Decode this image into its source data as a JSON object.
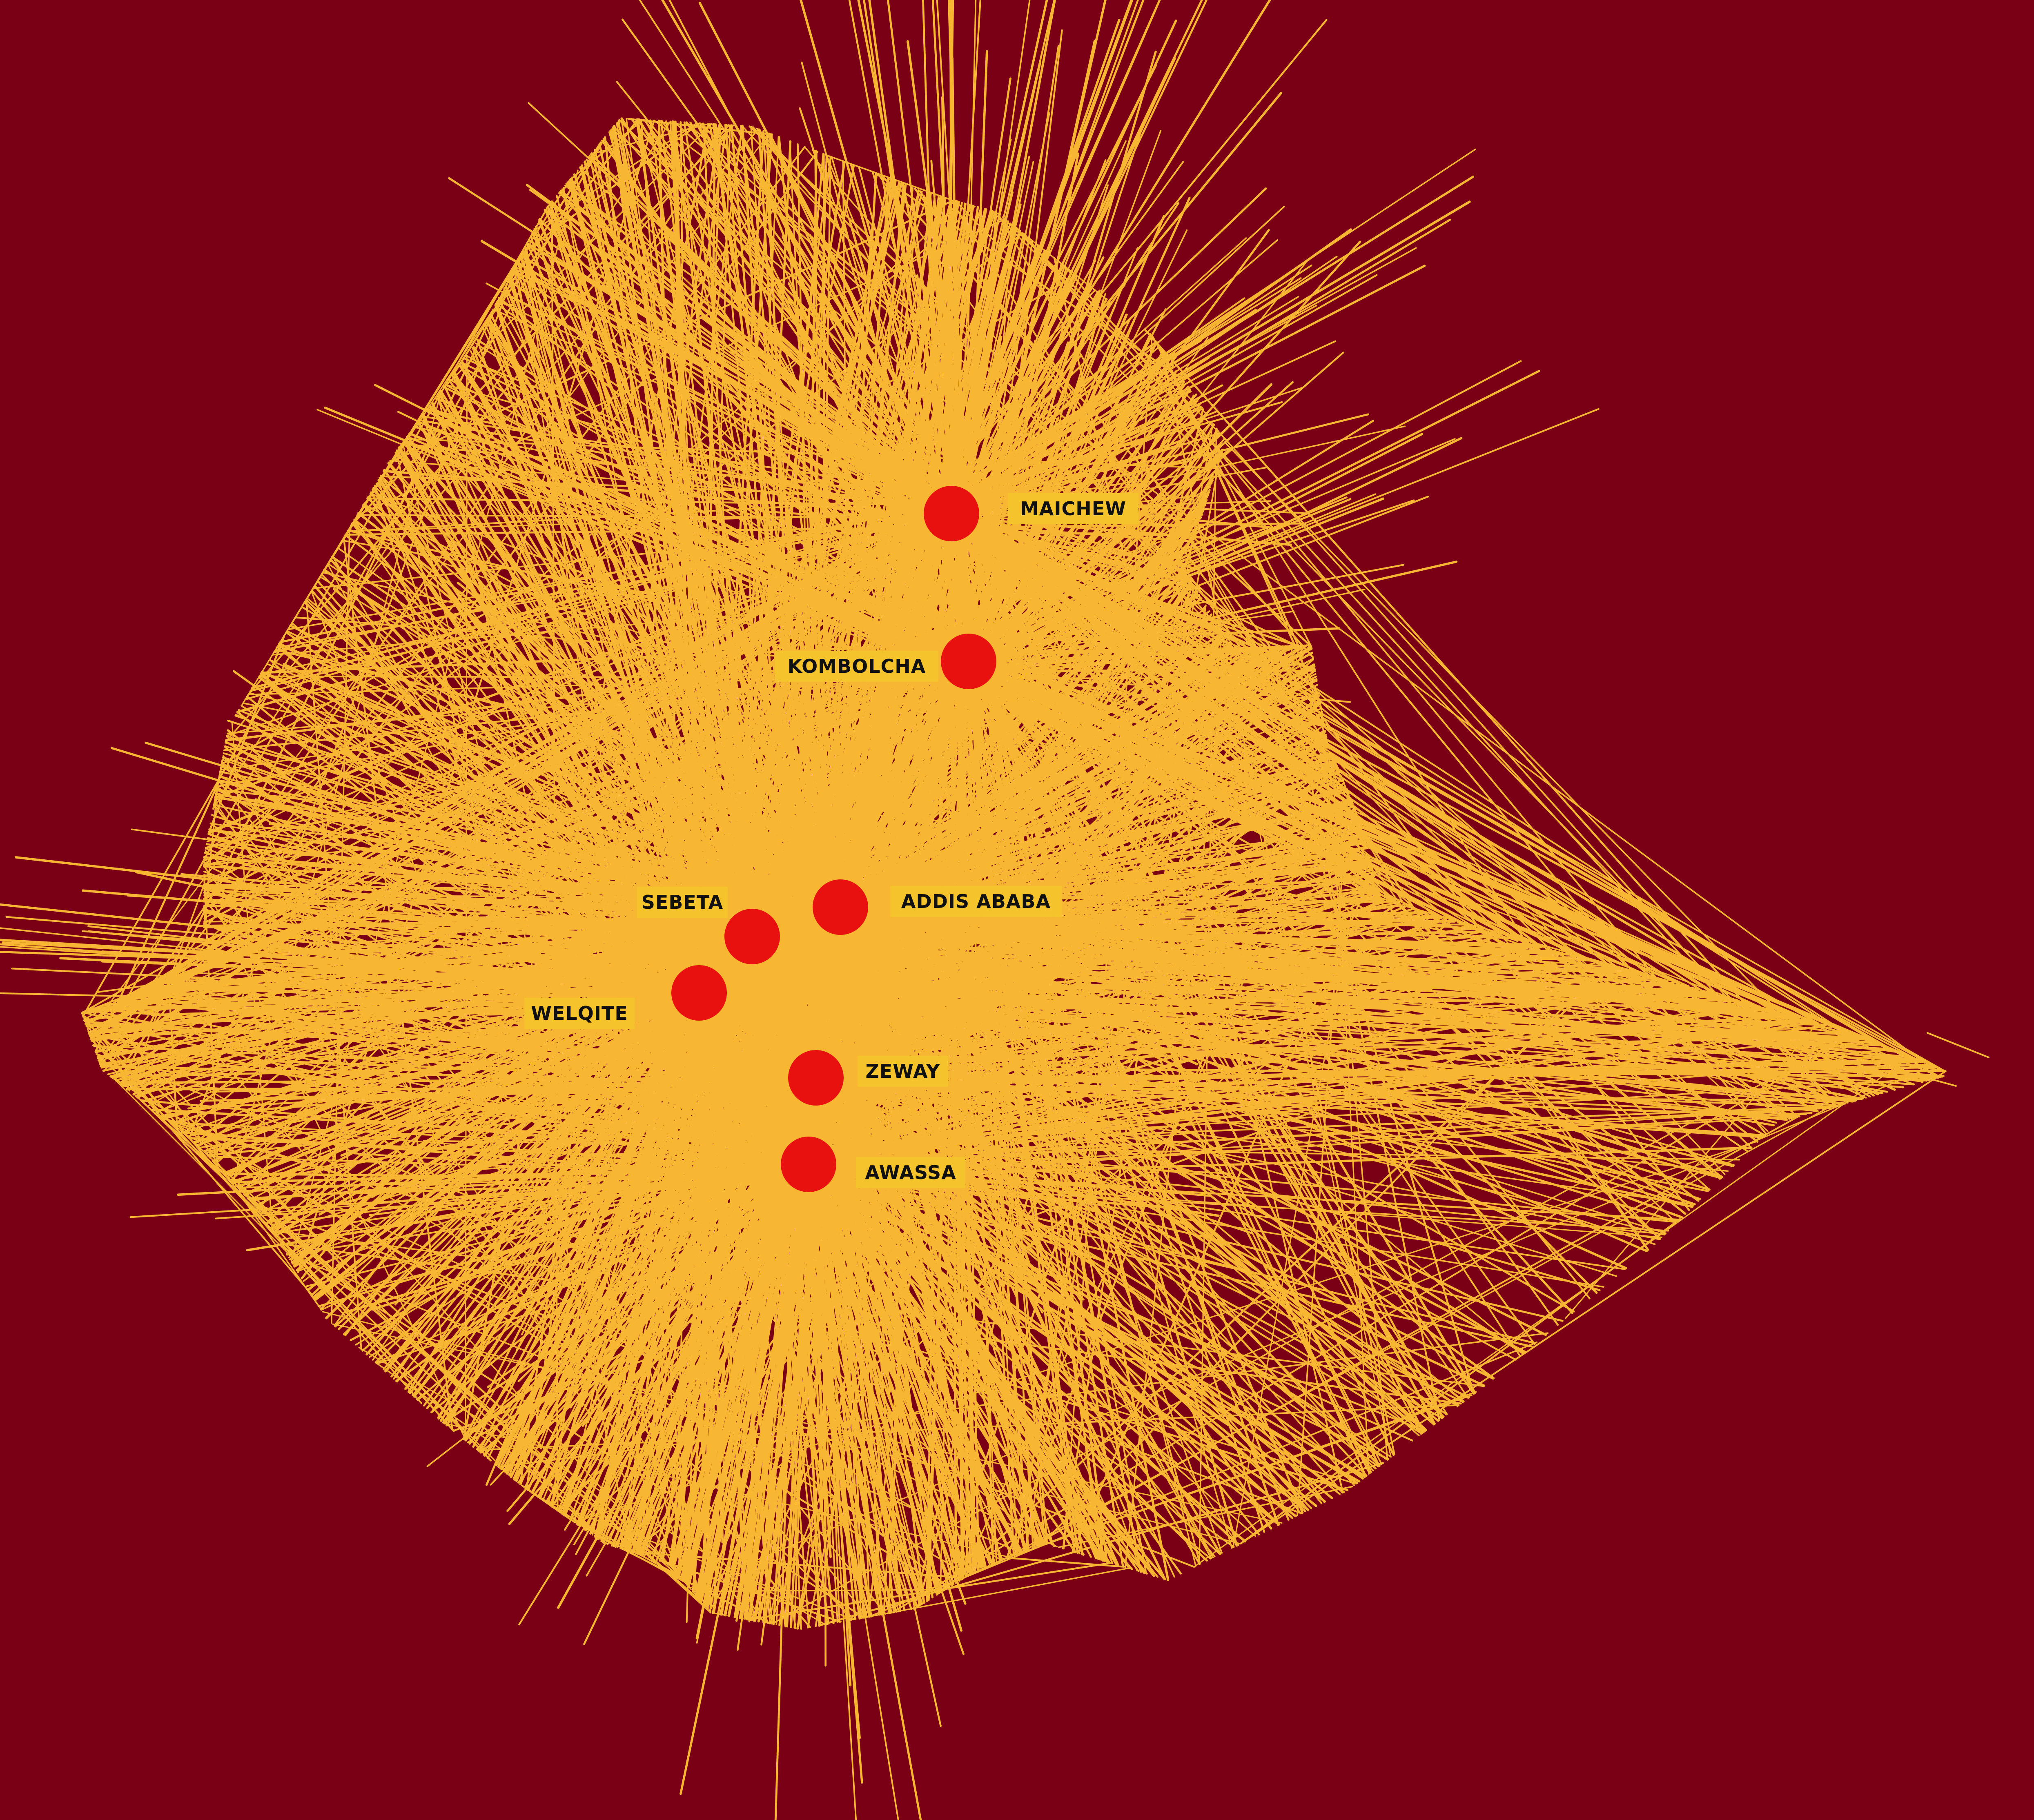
{
  "colors": {
    "background": "#7a0016",
    "lines": "#f7b733",
    "city_dot": "#e8110f",
    "label_bg": "#f5c32c",
    "label_text": "#111111"
  },
  "cities": [
    {
      "name": "MAICHEW"
    },
    {
      "name": "KOMBOLCHA"
    },
    {
      "name": "ADDIS ABABA"
    },
    {
      "name": "SEBETA"
    },
    {
      "name": "WELQITE"
    },
    {
      "name": "ZEWAY"
    },
    {
      "name": "AWASSA"
    }
  ]
}
